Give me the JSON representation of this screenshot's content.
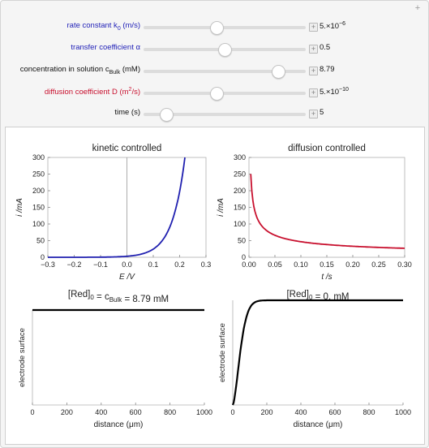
{
  "controls": [
    {
      "label": "rate constant k",
      "sub": "0",
      "suffix": " (m/s)",
      "color": "#2222b8",
      "thumb": 0.45,
      "value": "5.×10",
      "exp": "−6"
    },
    {
      "label": "transfer coefficient α",
      "sub": "",
      "suffix": "",
      "color": "#2222b8",
      "thumb": 0.5,
      "value": "0.5",
      "exp": ""
    },
    {
      "label": "concentration in solution c",
      "sub": "Bulk",
      "suffix": " (mM)",
      "color": "#111111",
      "thumb": 0.83,
      "value": "8.79",
      "exp": ""
    },
    {
      "label": "diffusion coefficient D (m",
      "sub": "",
      "suffix": "/s)",
      "sup": "2",
      "color": "#c8102e",
      "thumb": 0.45,
      "value": "5.×10",
      "exp": "−10"
    },
    {
      "label": "time (s)",
      "sub": "",
      "suffix": "",
      "color": "#111111",
      "thumb": 0.14,
      "value": "5",
      "exp": ""
    }
  ],
  "chart_data": [
    {
      "type": "line",
      "title": "kinetic controlled",
      "xlabel": "E /V",
      "ylabel": "i /mA",
      "xlim": [
        -0.3,
        0.3
      ],
      "ylim": [
        0,
        300
      ],
      "xticks": [
        "−0.3",
        "−0.2",
        "−0.1",
        "0.0",
        "0.1",
        "0.2",
        "0.3"
      ],
      "yticks": [
        "0",
        "50",
        "100",
        "150",
        "200",
        "250",
        "300"
      ],
      "color": "#2020b0",
      "x": [
        -0.3,
        -0.1,
        0.0,
        0.05,
        0.1,
        0.12,
        0.14,
        0.16,
        0.18,
        0.2,
        0.22
      ],
      "y": [
        0,
        0,
        2,
        8,
        25,
        40,
        62,
        95,
        145,
        205,
        300
      ]
    },
    {
      "type": "line",
      "title": "diffusion controlled",
      "xlabel": "t /s",
      "ylabel": "i /mA",
      "xlim": [
        0,
        0.3
      ],
      "ylim": [
        0,
        300
      ],
      "xticks": [
        "0.00",
        "0.05",
        "0.10",
        "0.15",
        "0.20",
        "0.25",
        "0.30"
      ],
      "yticks": [
        "0",
        "50",
        "100",
        "150",
        "200",
        "250",
        "300"
      ],
      "color": "#c8102e",
      "x": [
        0.003,
        0.005,
        0.008,
        0.012,
        0.02,
        0.03,
        0.05,
        0.08,
        0.1,
        0.15,
        0.2,
        0.25,
        0.3
      ],
      "y": [
        300,
        210,
        165,
        135,
        105,
        86,
        66,
        52,
        47,
        38,
        33,
        30,
        27
      ]
    },
    {
      "type": "line",
      "title_prefix": "[Red]",
      "title_sub": "0",
      "title_mid": " = c",
      "title_sub2": "Bulk",
      "title_end": " = 8.79 mM",
      "xlabel": "distance (μm)",
      "ylabel": "electrode surface",
      "xlim": [
        0,
        1000
      ],
      "ylim": [
        0,
        1
      ],
      "xticks": [
        "0",
        "200",
        "400",
        "600",
        "800",
        "1000"
      ],
      "color": "#000000",
      "x": [
        0,
        1000
      ],
      "y": [
        1,
        1
      ]
    },
    {
      "type": "line",
      "title_prefix": "[Red]",
      "title_sub": "0",
      "title_mid": "",
      "title_sub2": "",
      "title_end": " = 0. mM",
      "xlabel": "distance (μm)",
      "ylabel": "electrode surface",
      "xlim": [
        0,
        1000
      ],
      "ylim": [
        0,
        1
      ],
      "xticks": [
        "0",
        "200",
        "400",
        "600",
        "800",
        "1000"
      ],
      "color": "#000000",
      "x": [
        0,
        25,
        50,
        75,
        100,
        130,
        160,
        200,
        250,
        1000
      ],
      "y": [
        0,
        0.3,
        0.56,
        0.76,
        0.89,
        0.96,
        0.985,
        0.997,
        1,
        1
      ]
    }
  ]
}
